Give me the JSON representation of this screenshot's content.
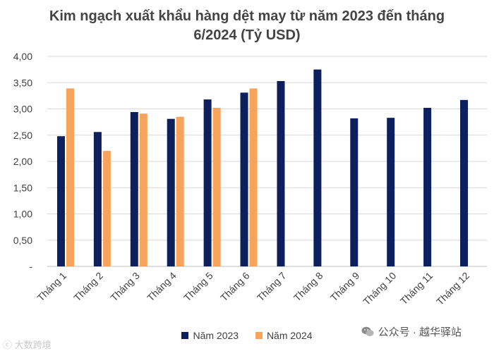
{
  "chart_data": {
    "type": "bar",
    "title_line1": "Kim ngạch xuất khẩu hàng dệt may từ năm 2023 đến tháng",
    "title_line2": "6/2024 (Tỷ USD)",
    "categories": [
      "Tháng 1",
      "Tháng 2",
      "Tháng 3",
      "Tháng 4",
      "Tháng 5",
      "Tháng 6",
      "Tháng 7",
      "Tháng 8",
      "Tháng 9",
      "Tháng 10",
      "Tháng 11",
      "Tháng 12"
    ],
    "series": [
      {
        "name": "Năm 2023",
        "color": "#0d1f5c",
        "values": [
          2.48,
          2.56,
          2.94,
          2.81,
          3.18,
          3.31,
          3.53,
          3.75,
          2.82,
          2.83,
          3.02,
          3.17
        ]
      },
      {
        "name": "Năm 2024",
        "color": "#f7a35c",
        "values": [
          3.39,
          2.2,
          2.91,
          2.85,
          3.02,
          3.39,
          null,
          null,
          null,
          null,
          null,
          null
        ]
      }
    ],
    "ylim": [
      0,
      4
    ],
    "yticks": [
      0,
      0.5,
      1,
      1.5,
      2,
      2.5,
      3,
      3.5,
      4
    ],
    "ytick_labels": [
      "-",
      "0,50",
      "1,00",
      "1,50",
      "2,00",
      "2,50",
      "3,00",
      "3,50",
      "4,00"
    ],
    "grid": true,
    "legend_position": "bottom"
  },
  "watermarks": {
    "left": "ⓒ 大数跨境",
    "right": "公众号 · 越华驿站"
  }
}
